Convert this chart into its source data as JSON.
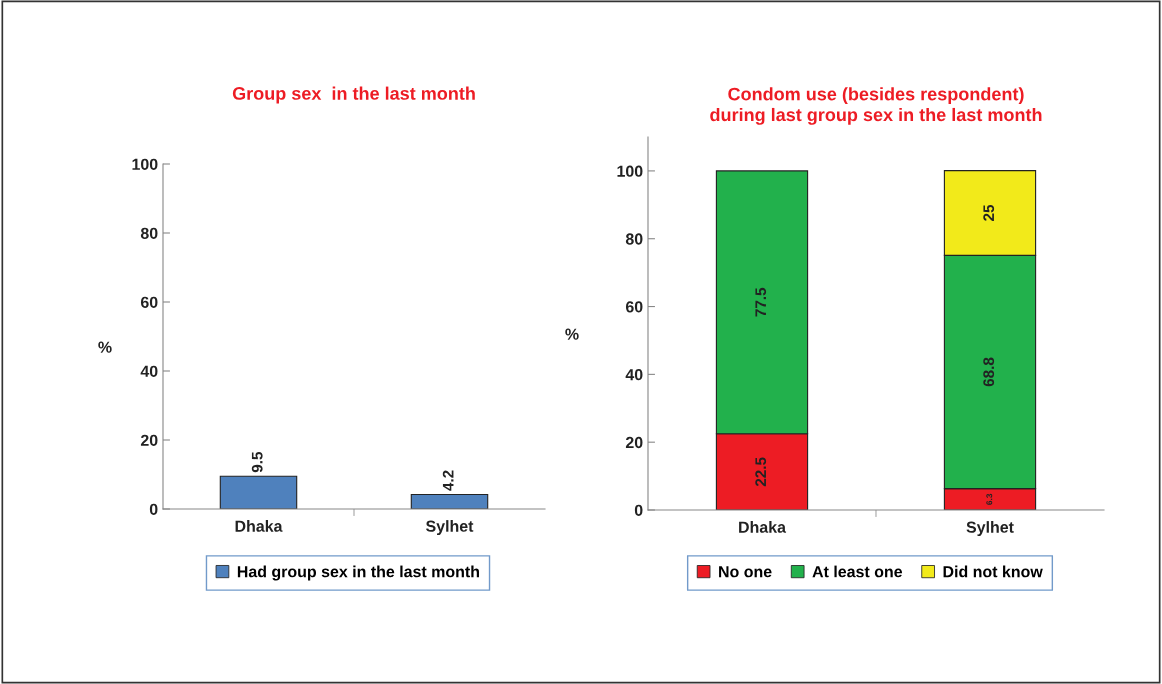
{
  "chart_data": [
    {
      "type": "bar",
      "title": "Group sex  in the last month",
      "ylabel": "%",
      "categories": [
        "Dhaka",
        "Sylhet"
      ],
      "series": [
        {
          "name": "Had group sex in the last month",
          "color": "#4f81bd",
          "values": [
            9.5,
            4.2
          ]
        }
      ],
      "ylim": [
        0,
        100
      ],
      "yticks": [
        0,
        20,
        40,
        60,
        80,
        100
      ],
      "data_labels": true,
      "legend": "bottom",
      "grid": false
    },
    {
      "type": "bar",
      "title": "Condom use (besides respondent)\nduring last group sex in the last month",
      "ylabel": "%",
      "categories": [
        "Dhaka",
        "Sylhet"
      ],
      "stacked": true,
      "series": [
        {
          "name": "No one",
          "color": "#ed1c24",
          "values": [
            22.5,
            6.3
          ]
        },
        {
          "name": "At least one",
          "color": "#22b14c",
          "values": [
            77.5,
            68.8
          ]
        },
        {
          "name": "Did not know",
          "color": "#f2ea1a",
          "values": [
            null,
            25
          ]
        }
      ],
      "ylim": [
        0,
        110
      ],
      "yticks": [
        0,
        20,
        40,
        60,
        80,
        100
      ],
      "data_labels": true,
      "legend": "bottom",
      "grid": false
    }
  ]
}
